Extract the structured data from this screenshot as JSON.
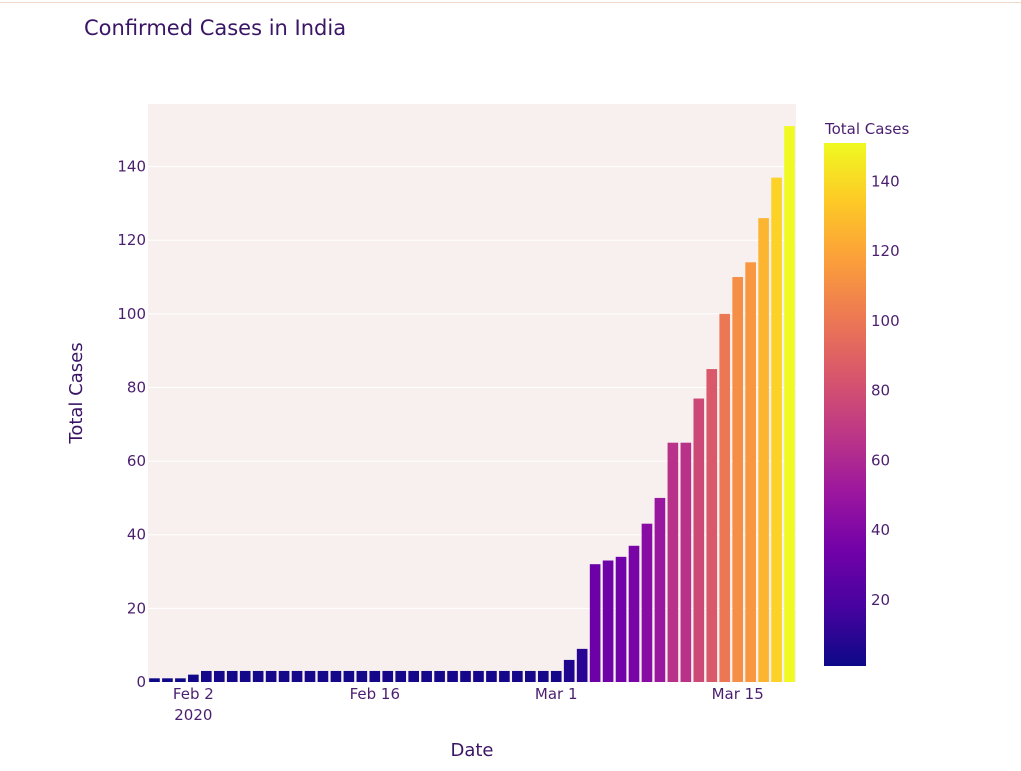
{
  "chart_data": {
    "type": "bar",
    "title": "Confirmed Cases in India",
    "xlabel": "Date",
    "ylabel": "Total Cases",
    "x_start": "2020-01-30",
    "x": [
      "2020-01-30",
      "2020-01-31",
      "2020-02-01",
      "2020-02-02",
      "2020-02-03",
      "2020-02-04",
      "2020-02-05",
      "2020-02-06",
      "2020-02-07",
      "2020-02-08",
      "2020-02-09",
      "2020-02-10",
      "2020-02-11",
      "2020-02-12",
      "2020-02-13",
      "2020-02-14",
      "2020-02-15",
      "2020-02-16",
      "2020-02-17",
      "2020-02-18",
      "2020-02-19",
      "2020-02-20",
      "2020-02-21",
      "2020-02-22",
      "2020-02-23",
      "2020-02-24",
      "2020-02-25",
      "2020-02-26",
      "2020-02-27",
      "2020-02-28",
      "2020-02-29",
      "2020-03-01",
      "2020-03-02",
      "2020-03-03",
      "2020-03-04",
      "2020-03-05",
      "2020-03-06",
      "2020-03-07",
      "2020-03-08",
      "2020-03-09",
      "2020-03-10",
      "2020-03-11",
      "2020-03-12",
      "2020-03-13",
      "2020-03-14",
      "2020-03-15",
      "2020-03-16",
      "2020-03-17",
      "2020-03-18",
      "2020-03-19"
    ],
    "values": [
      1,
      1,
      1,
      2,
      3,
      3,
      3,
      3,
      3,
      3,
      3,
      3,
      3,
      3,
      3,
      3,
      3,
      3,
      3,
      3,
      3,
      3,
      3,
      3,
      3,
      3,
      3,
      3,
      3,
      3,
      3,
      3,
      6,
      9,
      32,
      33,
      34,
      37,
      43,
      50,
      65,
      65,
      77,
      85,
      100,
      110,
      114,
      126,
      137,
      151
    ],
    "ylim": [
      0,
      157
    ],
    "yticks": [
      0,
      20,
      40,
      60,
      80,
      100,
      120,
      140
    ],
    "xticks": [
      {
        "label": "Feb 2",
        "sub": "2020",
        "index": 3
      },
      {
        "label": "Feb 16",
        "sub": "",
        "index": 17
      },
      {
        "label": "Mar 1",
        "sub": "",
        "index": 31
      },
      {
        "label": "Mar 15",
        "sub": "",
        "index": 45
      }
    ],
    "grid": true,
    "colorbar": {
      "title": "Total Cases",
      "range": [
        1,
        151
      ],
      "ticks": [
        20,
        40,
        60,
        80,
        100,
        120,
        140
      ],
      "colorscale": [
        "#0d0887",
        "#46039f",
        "#7201a8",
        "#9c179e",
        "#bd3786",
        "#d8576b",
        "#ed7953",
        "#fb9f3a",
        "#fdca26",
        "#f0f921"
      ]
    }
  }
}
